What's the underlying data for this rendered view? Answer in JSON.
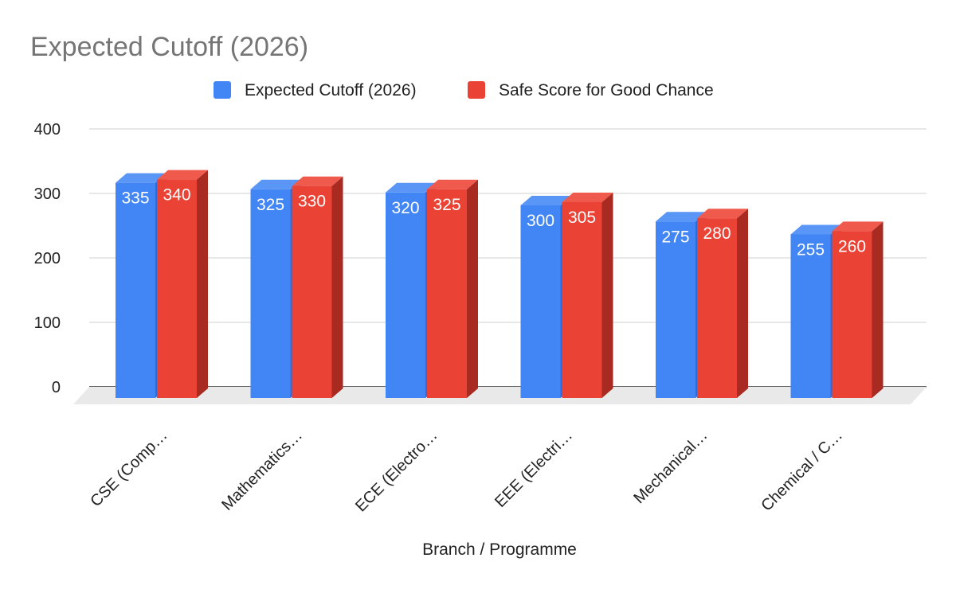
{
  "chart_data": {
    "type": "bar",
    "title": "Expected Cutoff (2026)",
    "xlabel": "Branch / Programme",
    "ylabel": "",
    "ylim": [
      0,
      400
    ],
    "yticks": [
      0,
      100,
      200,
      300,
      400
    ],
    "categories": [
      "CSE (Comp…",
      "Mathematics…",
      "ECE (Electro…",
      "EEE (Electri…",
      "Mechanical…",
      "Chemical / C…"
    ],
    "series": [
      {
        "name": "Expected Cutoff (2026)",
        "values": [
          335,
          325,
          320,
          300,
          275,
          255
        ],
        "color": "#4285f4",
        "side_color": "#2f6ad8",
        "top_color": "#5a96f6"
      },
      {
        "name": "Safe Score for Good Chance",
        "values": [
          340,
          330,
          325,
          305,
          280,
          260
        ],
        "color": "#ea4335",
        "side_color": "#a82a20",
        "top_color": "#ef5a4d"
      }
    ],
    "legend_position": "top-center",
    "grid": true,
    "style": "3d-bars",
    "data_labels": true
  }
}
